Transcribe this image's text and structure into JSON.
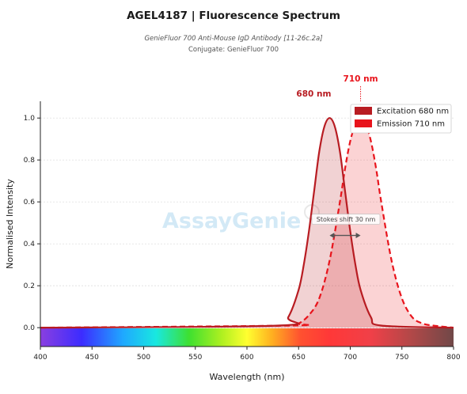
{
  "header": {
    "title": "AGEL4187  |  Fluorescence Spectrum",
    "subtitle": "GenieFluor 700 Anti-Mouse IgD Antibody [11-26c.2a]",
    "conjugate": "Conjugate: GenieFluor 700"
  },
  "watermark": {
    "part1": "Assay",
    "part2": "Genie"
  },
  "chart_data": {
    "type": "area",
    "xlabel": "Wavelength (nm)",
    "ylabel": "Normalised Intensity",
    "xlim": [
      400,
      800
    ],
    "ylim": [
      -0.09,
      1.08
    ],
    "x_ticks": [
      400,
      450,
      500,
      550,
      600,
      650,
      700,
      750,
      800
    ],
    "y_ticks": [
      0.0,
      0.2,
      0.4,
      0.6,
      0.8,
      1.0
    ],
    "y_tick_labels": [
      "0.0",
      "0.2",
      "0.4",
      "0.6",
      "0.8",
      "1.0"
    ],
    "grid": "horizontal dotted",
    "legend_position": "top-right",
    "series": [
      {
        "name": "Excitation  680 nm",
        "peak_nm": 680,
        "color": "#b81c22",
        "line_style": "solid",
        "x": [
          630,
          640,
          650,
          655,
          660,
          665,
          670,
          675,
          680,
          685,
          690,
          695,
          700,
          705,
          710,
          720,
          730
        ],
        "y": [
          0.01,
          0.05,
          0.18,
          0.3,
          0.46,
          0.65,
          0.84,
          0.96,
          1.0,
          0.96,
          0.84,
          0.65,
          0.46,
          0.3,
          0.18,
          0.05,
          0.01
        ]
      },
      {
        "name": "Emission  710 nm",
        "peak_nm": 710,
        "color": "#e8141c",
        "line_style": "dashed",
        "x": [
          640,
          650,
          660,
          670,
          680,
          690,
          695,
          700,
          705,
          710,
          715,
          720,
          725,
          730,
          740,
          750,
          760,
          770,
          780
        ],
        "y": [
          0.01,
          0.02,
          0.06,
          0.14,
          0.32,
          0.6,
          0.76,
          0.89,
          0.97,
          1.0,
          0.97,
          0.89,
          0.76,
          0.6,
          0.32,
          0.14,
          0.05,
          0.02,
          0.01
        ]
      }
    ],
    "peak_labels": [
      {
        "text": "680 nm",
        "color": "#b81c22"
      },
      {
        "text": "710 nm",
        "color": "#e8141c"
      }
    ],
    "annotation": {
      "text": "Stokes shift  30 nm",
      "from_nm": 680,
      "to_nm": 710,
      "y": 0.44
    },
    "spectrum_bar": {
      "from_nm": 400,
      "to_nm": 800
    }
  }
}
